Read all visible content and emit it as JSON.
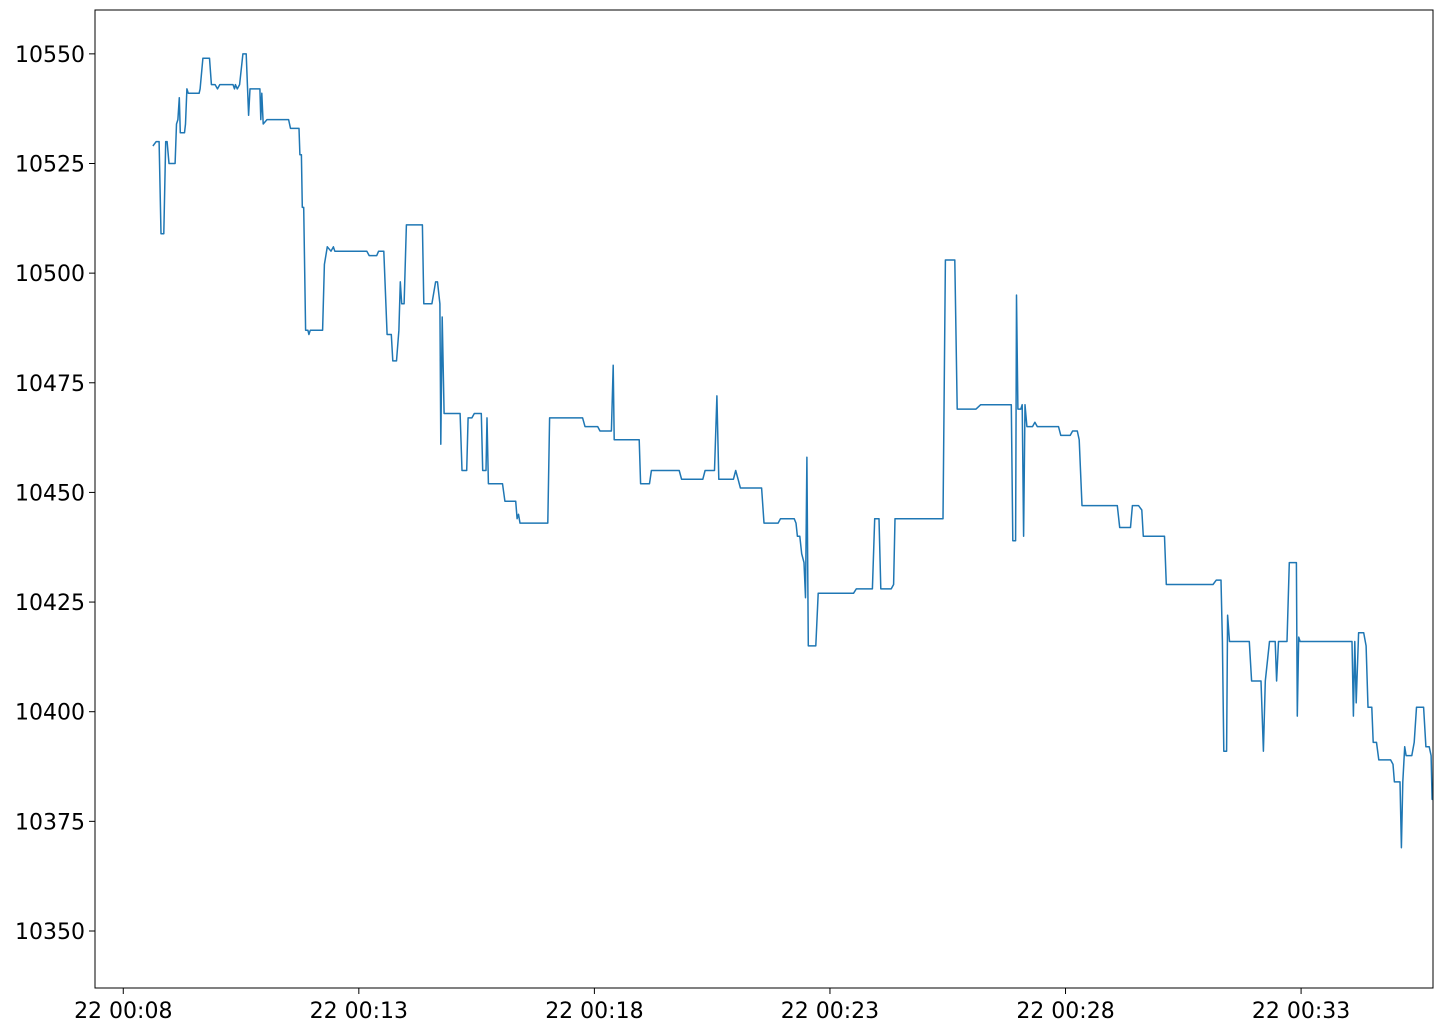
{
  "chart_data": {
    "type": "line",
    "title": "",
    "xlabel": "",
    "ylabel": "",
    "x_unit": "minutes",
    "xlim": [
      -0.6,
      27.8
    ],
    "ylim": [
      10337,
      10560
    ],
    "grid": false,
    "line_color": "#1f77b4",
    "x_ticks": [
      {
        "value": 0,
        "label": "22 00:08"
      },
      {
        "value": 5,
        "label": "22 00:13"
      },
      {
        "value": 10,
        "label": "22 00:18"
      },
      {
        "value": 15,
        "label": "22 00:23"
      },
      {
        "value": 20,
        "label": "22 00:28"
      },
      {
        "value": 25,
        "label": "22 00:33"
      }
    ],
    "y_ticks": [
      {
        "value": 10350,
        "label": "10350"
      },
      {
        "value": 10375,
        "label": "10375"
      },
      {
        "value": 10400,
        "label": "10400"
      },
      {
        "value": 10425,
        "label": "10425"
      },
      {
        "value": 10450,
        "label": "10450"
      },
      {
        "value": 10475,
        "label": "10475"
      },
      {
        "value": 10500,
        "label": "10500"
      },
      {
        "value": 10525,
        "label": "10525"
      },
      {
        "value": 10550,
        "label": "10550"
      }
    ],
    "series": [
      {
        "name": "",
        "points": [
          [
            0.63,
            10529
          ],
          [
            0.7,
            10530
          ],
          [
            0.76,
            10530
          ],
          [
            0.8,
            10509
          ],
          [
            0.86,
            10509
          ],
          [
            0.9,
            10530
          ],
          [
            0.93,
            10530
          ],
          [
            0.97,
            10525
          ],
          [
            1.1,
            10525
          ],
          [
            1.13,
            10534
          ],
          [
            1.16,
            10535
          ],
          [
            1.19,
            10540
          ],
          [
            1.21,
            10532
          ],
          [
            1.3,
            10532
          ],
          [
            1.32,
            10534
          ],
          [
            1.35,
            10542
          ],
          [
            1.38,
            10541
          ],
          [
            1.61,
            10541
          ],
          [
            1.63,
            10542
          ],
          [
            1.69,
            10549
          ],
          [
            1.83,
            10549
          ],
          [
            1.87,
            10543
          ],
          [
            1.95,
            10543
          ],
          [
            2.0,
            10542
          ],
          [
            2.05,
            10543
          ],
          [
            2.33,
            10543
          ],
          [
            2.36,
            10542
          ],
          [
            2.38,
            10543
          ],
          [
            2.42,
            10542
          ],
          [
            2.47,
            10543
          ],
          [
            2.54,
            10550
          ],
          [
            2.61,
            10550
          ],
          [
            2.66,
            10536
          ],
          [
            2.69,
            10542
          ],
          [
            2.9,
            10542
          ],
          [
            2.92,
            10535
          ],
          [
            2.94,
            10541
          ],
          [
            2.97,
            10534
          ],
          [
            3.05,
            10535
          ],
          [
            3.51,
            10535
          ],
          [
            3.55,
            10533
          ],
          [
            3.73,
            10533
          ],
          [
            3.75,
            10527
          ],
          [
            3.78,
            10527
          ],
          [
            3.8,
            10515
          ],
          [
            3.83,
            10515
          ],
          [
            3.87,
            10487
          ],
          [
            3.92,
            10487
          ],
          [
            3.94,
            10486
          ],
          [
            3.97,
            10487
          ],
          [
            4.23,
            10487
          ],
          [
            4.27,
            10502
          ],
          [
            4.33,
            10506
          ],
          [
            4.41,
            10505
          ],
          [
            4.46,
            10506
          ],
          [
            4.49,
            10505
          ],
          [
            5.17,
            10505
          ],
          [
            5.22,
            10504
          ],
          [
            5.38,
            10504
          ],
          [
            5.42,
            10505
          ],
          [
            5.53,
            10505
          ],
          [
            5.6,
            10486
          ],
          [
            5.69,
            10486
          ],
          [
            5.72,
            10480
          ],
          [
            5.8,
            10480
          ],
          [
            5.85,
            10487
          ],
          [
            5.88,
            10498
          ],
          [
            5.91,
            10493
          ],
          [
            5.96,
            10493
          ],
          [
            6.01,
            10511
          ],
          [
            6.35,
            10511
          ],
          [
            6.38,
            10493
          ],
          [
            6.55,
            10493
          ],
          [
            6.63,
            10498
          ],
          [
            6.67,
            10498
          ],
          [
            6.72,
            10493
          ],
          [
            6.74,
            10461
          ],
          [
            6.77,
            10490
          ],
          [
            6.81,
            10468
          ],
          [
            7.15,
            10468
          ],
          [
            7.19,
            10455
          ],
          [
            7.29,
            10455
          ],
          [
            7.32,
            10467
          ],
          [
            7.4,
            10467
          ],
          [
            7.45,
            10468
          ],
          [
            7.6,
            10468
          ],
          [
            7.63,
            10455
          ],
          [
            7.7,
            10455
          ],
          [
            7.72,
            10467
          ],
          [
            7.75,
            10452
          ],
          [
            8.05,
            10452
          ],
          [
            8.1,
            10448
          ],
          [
            8.33,
            10448
          ],
          [
            8.36,
            10444
          ],
          [
            8.39,
            10445
          ],
          [
            8.42,
            10443
          ],
          [
            8.95,
            10443
          ],
          [
            9.01,
            10443
          ],
          [
            9.05,
            10467
          ],
          [
            9.75,
            10467
          ],
          [
            9.8,
            10465
          ],
          [
            10.07,
            10465
          ],
          [
            10.12,
            10464
          ],
          [
            10.36,
            10464
          ],
          [
            10.4,
            10479
          ],
          [
            10.42,
            10462
          ],
          [
            10.55,
            10462
          ],
          [
            10.6,
            10462
          ],
          [
            10.95,
            10462
          ],
          [
            10.98,
            10452
          ],
          [
            11.17,
            10452
          ],
          [
            11.21,
            10455
          ],
          [
            11.8,
            10455
          ],
          [
            11.85,
            10453
          ],
          [
            12.3,
            10453
          ],
          [
            12.35,
            10455
          ],
          [
            12.55,
            10455
          ],
          [
            12.6,
            10472
          ],
          [
            12.64,
            10453
          ],
          [
            12.95,
            10453
          ],
          [
            13.0,
            10455
          ],
          [
            13.05,
            10453
          ],
          [
            13.1,
            10451
          ],
          [
            13.55,
            10451
          ],
          [
            13.6,
            10443
          ],
          [
            13.9,
            10443
          ],
          [
            13.95,
            10444
          ],
          [
            14.24,
            10444
          ],
          [
            14.28,
            10443
          ],
          [
            14.31,
            10440
          ],
          [
            14.36,
            10440
          ],
          [
            14.4,
            10436
          ],
          [
            14.45,
            10434
          ],
          [
            14.48,
            10426
          ],
          [
            14.51,
            10458
          ],
          [
            14.54,
            10415
          ],
          [
            14.7,
            10415
          ],
          [
            14.75,
            10427
          ],
          [
            15.03,
            10427
          ],
          [
            15.1,
            10427
          ],
          [
            15.5,
            10427
          ],
          [
            15.56,
            10428
          ],
          [
            15.9,
            10428
          ],
          [
            15.95,
            10444
          ],
          [
            16.04,
            10444
          ],
          [
            16.08,
            10428
          ],
          [
            16.3,
            10428
          ],
          [
            16.35,
            10429
          ],
          [
            16.38,
            10444
          ],
          [
            17.0,
            10444
          ],
          [
            17.3,
            10444
          ],
          [
            17.4,
            10444
          ],
          [
            17.45,
            10503
          ],
          [
            17.65,
            10503
          ],
          [
            17.7,
            10469
          ],
          [
            18.1,
            10469
          ],
          [
            18.2,
            10470
          ],
          [
            18.85,
            10470
          ],
          [
            18.88,
            10439
          ],
          [
            18.94,
            10439
          ],
          [
            18.96,
            10495
          ],
          [
            18.99,
            10469
          ],
          [
            19.05,
            10469
          ],
          [
            19.08,
            10470
          ],
          [
            19.11,
            10440
          ],
          [
            19.14,
            10470
          ],
          [
            19.18,
            10465
          ],
          [
            19.3,
            10465
          ],
          [
            19.35,
            10466
          ],
          [
            19.4,
            10465
          ],
          [
            19.85,
            10465
          ],
          [
            19.9,
            10463
          ],
          [
            20.1,
            10463
          ],
          [
            20.15,
            10464
          ],
          [
            20.25,
            10464
          ],
          [
            20.29,
            10462
          ],
          [
            20.35,
            10447
          ],
          [
            21.1,
            10447
          ],
          [
            21.15,
            10442
          ],
          [
            21.38,
            10442
          ],
          [
            21.42,
            10447
          ],
          [
            21.55,
            10447
          ],
          [
            21.62,
            10446
          ],
          [
            21.65,
            10440
          ],
          [
            22.1,
            10440
          ],
          [
            22.14,
            10429
          ],
          [
            23.13,
            10429
          ],
          [
            23.2,
            10430
          ],
          [
            23.3,
            10430
          ],
          [
            23.33,
            10416
          ],
          [
            23.36,
            10391
          ],
          [
            23.42,
            10391
          ],
          [
            23.44,
            10422
          ],
          [
            23.48,
            10416
          ],
          [
            23.9,
            10416
          ],
          [
            23.95,
            10407
          ],
          [
            24.15,
            10407
          ],
          [
            24.2,
            10391
          ],
          [
            24.24,
            10407
          ],
          [
            24.33,
            10416
          ],
          [
            24.45,
            10416
          ],
          [
            24.48,
            10407
          ],
          [
            24.52,
            10416
          ],
          [
            24.7,
            10416
          ],
          [
            24.75,
            10434
          ],
          [
            24.9,
            10434
          ],
          [
            24.92,
            10399
          ],
          [
            24.95,
            10417
          ],
          [
            24.98,
            10416
          ],
          [
            25.8,
            10416
          ],
          [
            25.85,
            10416
          ],
          [
            26.0,
            10416
          ],
          [
            26.08,
            10416
          ],
          [
            26.11,
            10399
          ],
          [
            26.14,
            10416
          ],
          [
            26.17,
            10402
          ],
          [
            26.22,
            10418
          ],
          [
            26.33,
            10418
          ],
          [
            26.38,
            10415
          ],
          [
            26.42,
            10401
          ],
          [
            26.5,
            10401
          ],
          [
            26.53,
            10393
          ],
          [
            26.6,
            10393
          ],
          [
            26.65,
            10389
          ],
          [
            26.9,
            10389
          ],
          [
            26.95,
            10388
          ],
          [
            26.98,
            10384
          ],
          [
            27.1,
            10384
          ],
          [
            27.13,
            10369
          ],
          [
            27.16,
            10384
          ],
          [
            27.2,
            10392
          ],
          [
            27.23,
            10390
          ],
          [
            27.35,
            10390
          ],
          [
            27.4,
            10393
          ],
          [
            27.45,
            10401
          ],
          [
            27.6,
            10401
          ],
          [
            27.65,
            10392
          ],
          [
            27.72,
            10392
          ],
          [
            27.76,
            10390
          ],
          [
            27.78,
            10380
          ],
          [
            27.8,
            10380
          ]
        ]
      }
    ]
  }
}
